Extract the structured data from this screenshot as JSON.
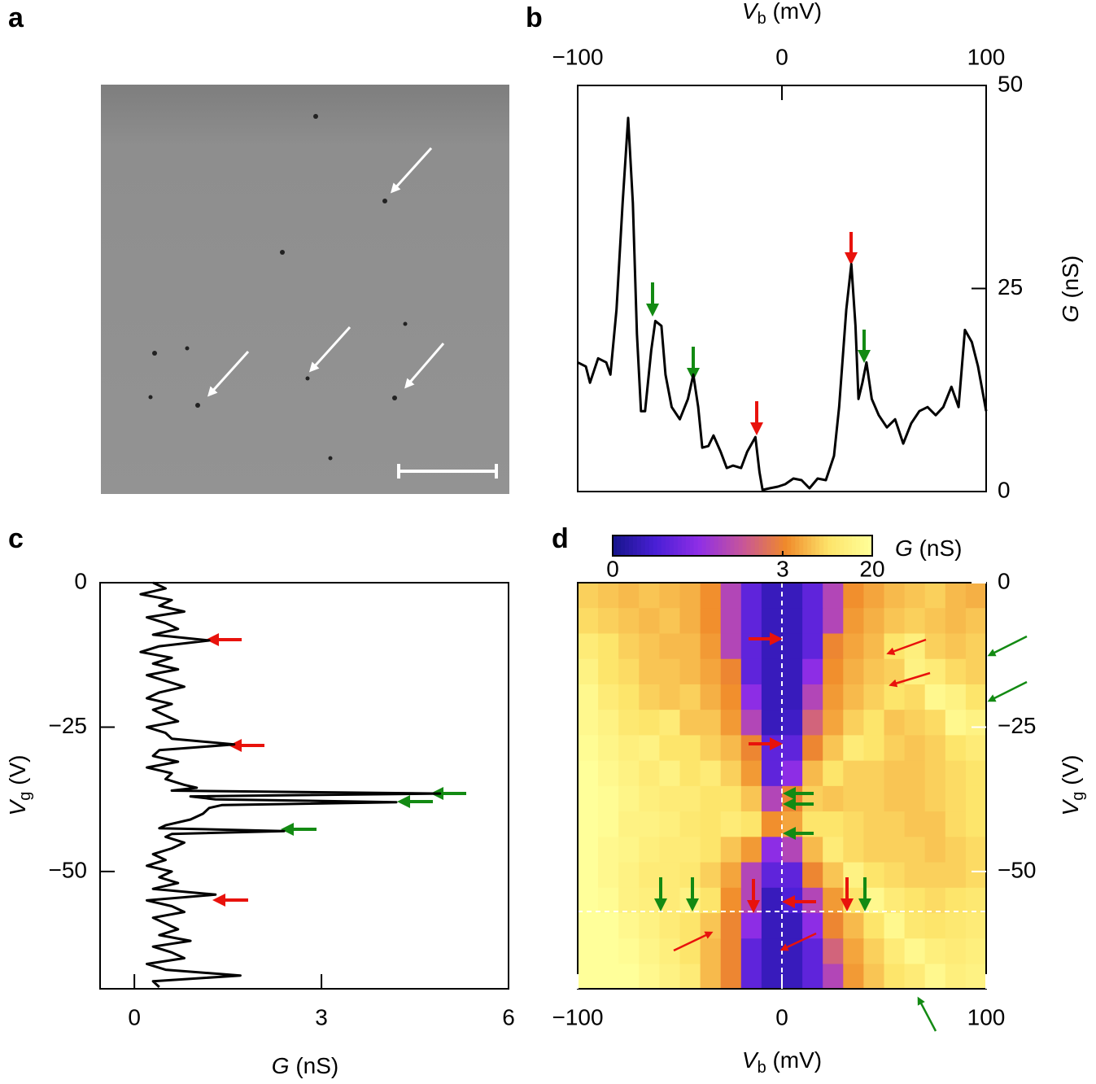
{
  "chart_data": [
    {
      "type": "image",
      "label": "a"
    },
    {
      "type": "line",
      "label": "b",
      "xlabel": [
        "V",
        "b",
        " (mV)"
      ],
      "ylabel": [
        "G",
        " (nS)"
      ],
      "color": "#000000",
      "x": [
        -100,
        -96,
        -94,
        -90,
        -86,
        -84,
        -81,
        -78,
        -75.3,
        -73,
        -71,
        -69,
        -67,
        -64,
        -62,
        -59,
        -57,
        -54,
        -50,
        -46,
        -43.4,
        -41,
        -39,
        -36,
        -33.5,
        -30,
        -27,
        -24,
        -20,
        -17,
        -13,
        -11,
        -9.5,
        -6,
        -2,
        1.6,
        5.6,
        9.6,
        13.5,
        17.5,
        21.5,
        25.5,
        28,
        31.5,
        34,
        36,
        37.5,
        39.4,
        41.4,
        44,
        47.4,
        51.4,
        55.4,
        59.4,
        63.3,
        67.3,
        71.3,
        75.3,
        79,
        83,
        86.5,
        89.6,
        93,
        96,
        100
      ],
      "values": [
        15.9,
        15.4,
        13.4,
        16.4,
        15.9,
        14.4,
        22.4,
        35.5,
        46,
        35.5,
        19.4,
        9.9,
        9.9,
        17.4,
        21,
        20.4,
        14.4,
        10.4,
        8.9,
        11.4,
        14.4,
        10.4,
        5.4,
        5.6,
        6.9,
        4.9,
        2.9,
        3.2,
        2.9,
        4.9,
        6.7,
        2.4,
        0.2,
        0.4,
        0.6,
        0.9,
        1.6,
        1.4,
        0.4,
        1.6,
        1.4,
        4.4,
        10.4,
        22.4,
        28,
        20.4,
        11.4,
        13.4,
        15.9,
        11.4,
        9.4,
        7.9,
        8.9,
        5.9,
        8.4,
        9.9,
        10.4,
        9.4,
        10.4,
        12.9,
        10.4,
        19.9,
        18.4,
        15.4,
        9.9
      ],
      "xlim": [
        -100,
        100
      ],
      "xticks": [
        {
          "value": -100,
          "label": "−100"
        },
        0,
        100
      ],
      "ylim": [
        0,
        50
      ],
      "yticks": [
        0,
        25,
        50
      ]
    },
    {
      "type": "line",
      "label": "c",
      "xlabel": [
        "G",
        " (nS)"
      ],
      "ylabel": [
        "V",
        "g",
        " (V)"
      ],
      "color": "#000000",
      "y": [
        0,
        -1,
        -2,
        -3,
        -4,
        -5,
        -6,
        -7,
        -8,
        -9,
        -10,
        -11,
        -12,
        -13,
        -14,
        -15,
        -16,
        -17,
        -18,
        -19,
        -20,
        -21,
        -22,
        -23,
        -24,
        -25,
        -26,
        -27,
        -28,
        -29,
        -30,
        -31,
        -32,
        -33,
        -34,
        -35,
        -35.5,
        -36,
        -36.5,
        -37,
        -37.5,
        -38,
        -38.5,
        -39,
        -40,
        -41,
        -42,
        -42.5,
        -43,
        -43.5,
        -44,
        -45,
        -46,
        -47,
        -48,
        -49,
        -50,
        -51,
        -52,
        -53,
        -54,
        -55,
        -56,
        -57,
        -58,
        -59,
        -60,
        -61,
        -62,
        -63,
        -64,
        -65,
        -66,
        -67,
        -68,
        -69,
        -70
      ],
      "values": [
        0.3,
        0.5,
        0.1,
        0.6,
        0.4,
        0.8,
        0.2,
        0.5,
        0.7,
        0.3,
        1.2,
        0.4,
        0.1,
        0.6,
        0.3,
        0.7,
        0.2,
        0.5,
        0.8,
        0.4,
        0.2,
        0.6,
        0.3,
        0.5,
        0.7,
        0.2,
        0.5,
        0.6,
        1.6,
        0.4,
        0.3,
        0.7,
        0.2,
        0.6,
        0.5,
        0.8,
        1.0,
        0.6,
        4.9,
        0.9,
        1.3,
        4.2,
        1.4,
        1.2,
        1.1,
        0.9,
        0.5,
        0.4,
        2.4,
        0.6,
        0.5,
        0.8,
        0.6,
        0.3,
        0.5,
        0.2,
        0.6,
        0.4,
        0.7,
        0.3,
        1.3,
        0.2,
        0.6,
        0.8,
        0.3,
        0.5,
        0.7,
        0.4,
        0.9,
        0.3,
        0.6,
        0.8,
        0.2,
        0.5,
        1.7,
        0.3,
        0.4
      ],
      "xlim": [
        -0.55,
        6
      ],
      "xticks": [
        0,
        3,
        6
      ],
      "ylim": [
        -70.3,
        0
      ],
      "yticks": [
        0,
        {
          "value": -25,
          "label": "−25"
        },
        {
          "value": -50,
          "label": "−50"
        }
      ]
    },
    {
      "type": "heatmap",
      "label": "d",
      "xlabel": [
        "V",
        "b",
        " (mV)"
      ],
      "ylabel": [
        "V",
        "g",
        " (V)"
      ],
      "x": [
        -95,
        -85,
        -75,
        -65,
        -55,
        -45,
        -35,
        -25,
        -15,
        -5,
        5,
        15,
        25,
        35,
        45,
        55,
        65,
        75,
        85,
        95
      ],
      "y": [
        -2.2,
        -6.6,
        -11,
        -15.4,
        -19.8,
        -24.2,
        -28.6,
        -33,
        -37.4,
        -41.8,
        -46.2,
        -50.6,
        -55,
        -59.4,
        -63.8,
        -68.2
      ],
      "z": [
        [
          10,
          9,
          8,
          9,
          8,
          7,
          4,
          2,
          1,
          0.5,
          0.5,
          1,
          2,
          4,
          6,
          8,
          9,
          10,
          8,
          7
        ],
        [
          11,
          10,
          9,
          8,
          9,
          7,
          4,
          2,
          1,
          0.5,
          0.5,
          1,
          2,
          5,
          7,
          9,
          10,
          9,
          8,
          9
        ],
        [
          14,
          12,
          10,
          9,
          8,
          8,
          5,
          2,
          1,
          0.5,
          0.5,
          1,
          3,
          6,
          8,
          12,
          15,
          10,
          9,
          10
        ],
        [
          16,
          12,
          11,
          9,
          9,
          8,
          6,
          3,
          1,
          0.5,
          0.5,
          1.5,
          4,
          7,
          9,
          10,
          16,
          14,
          11,
          10
        ],
        [
          18,
          14,
          12,
          10,
          9,
          10,
          7,
          4,
          1.5,
          0.5,
          0.5,
          2,
          5,
          8,
          10,
          12,
          11,
          18,
          16,
          12
        ],
        [
          18,
          16,
          13,
          12,
          14,
          9,
          9,
          5,
          2,
          0.5,
          0.6,
          2.5,
          6,
          10,
          12,
          9,
          10,
          11,
          18,
          16
        ],
        [
          19,
          17,
          15,
          16,
          12,
          12,
          10,
          8,
          3,
          1,
          1,
          3,
          9,
          14,
          12,
          10,
          9,
          10,
          12,
          14
        ],
        [
          20,
          18,
          16,
          14,
          16,
          12,
          14,
          10,
          5,
          1,
          1.5,
          8,
          12,
          10,
          10,
          9,
          9,
          10,
          11,
          12
        ],
        [
          20,
          19,
          17,
          15,
          14,
          14,
          12,
          12,
          9,
          2,
          3,
          10,
          9,
          10,
          10,
          9,
          9,
          10,
          11,
          12
        ],
        [
          20,
          19,
          16,
          16,
          15,
          13,
          12,
          14,
          12,
          4,
          6,
          12,
          12,
          11,
          10,
          10,
          9,
          9,
          11,
          12
        ],
        [
          20,
          18,
          17,
          15,
          14,
          14,
          12,
          9,
          5,
          1.5,
          2,
          8,
          14,
          11,
          10,
          10,
          10,
          9,
          10,
          11
        ],
        [
          20,
          18,
          16,
          14,
          14,
          13,
          10,
          6,
          2,
          1,
          1,
          3,
          9,
          16,
          12,
          11,
          10,
          10,
          10,
          11
        ],
        [
          20,
          19,
          16,
          15,
          14,
          16,
          12,
          4,
          2,
          0.5,
          0.8,
          2,
          5,
          12,
          18,
          14,
          12,
          11,
          12,
          13
        ],
        [
          20,
          20,
          18,
          16,
          14,
          12,
          9,
          3,
          1.5,
          0.5,
          0.5,
          1.5,
          3,
          8,
          12,
          18,
          13,
          12,
          13,
          14
        ],
        [
          20,
          20,
          19,
          17,
          15,
          12,
          8,
          3,
          1,
          0.5,
          0.5,
          1,
          2.5,
          6,
          10,
          14,
          18,
          15,
          14,
          15
        ],
        [
          20,
          20,
          20,
          18,
          16,
          14,
          8,
          3,
          1,
          0.5,
          0.5,
          1,
          2,
          5,
          9,
          12,
          14,
          18,
          15,
          16
        ]
      ],
      "xlim": [
        -100,
        100
      ],
      "xticks": [
        {
          "value": -100,
          "label": "−100"
        },
        0,
        100
      ],
      "ylim": [
        -70.3,
        0
      ],
      "yticks": [
        0,
        {
          "value": -25,
          "label": "−25"
        },
        {
          "value": -50,
          "label": "−50"
        }
      ],
      "colorbar": {
        "label": [
          "G",
          " (nS)"
        ],
        "ticks": [
          0,
          3,
          20
        ],
        "colors": [
          "#16148a",
          "#4a1fd6",
          "#8f2ee6",
          "#c7559a",
          "#f08a2a",
          "#fde46a",
          "#ffff9a"
        ]
      }
    }
  ]
}
